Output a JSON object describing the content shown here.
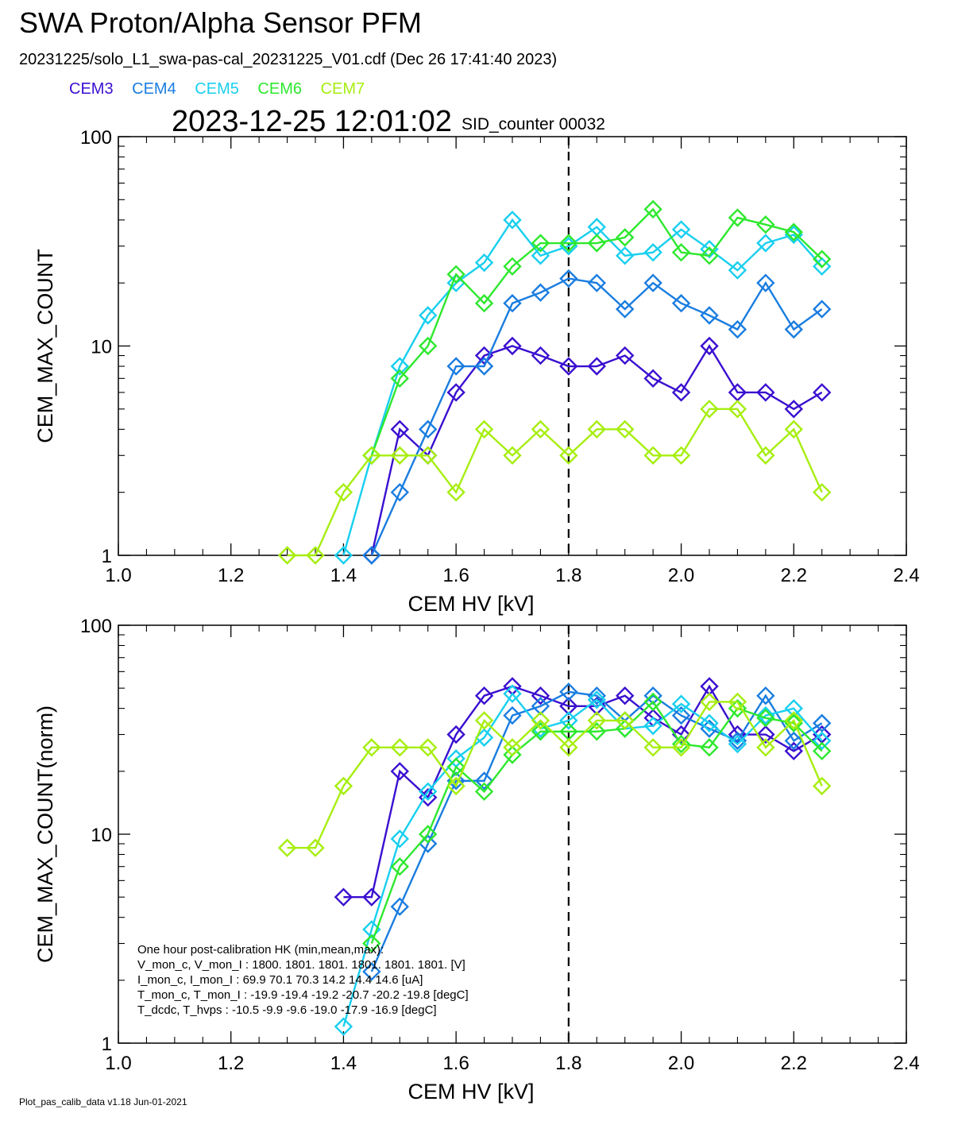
{
  "header": {
    "title": "SWA Proton/Alpha Sensor PFM",
    "subtitle": "20231225/solo_L1_swa-pas-cal_20231225_V01.cdf  (Dec 26 17:41:40 2023)",
    "timestamp": "2023-12-25 12:01:02",
    "sid_label": "SID_counter 00032"
  },
  "legend": [
    {
      "name": "CEM3",
      "color": "#3a0fd0"
    },
    {
      "name": "CEM4",
      "color": "#1a7de0"
    },
    {
      "name": "CEM5",
      "color": "#18cfef"
    },
    {
      "name": "CEM6",
      "color": "#2ee82e"
    },
    {
      "name": "CEM7",
      "color": "#a6ee10"
    }
  ],
  "footer": "Plot_pas_calib_data v1.18 Jun-01-2021",
  "hk_text": [
    "One hour post-calibration HK (min,mean,max):",
    "V_mon_c, V_mon_I :    1800.  1801.  1801.      1801.  1801.  1801.  [V]",
    "I_mon_c,  I_mon_I :      69.9   70.1   70.3        14.2   14.4   14.6  [uA]",
    "T_mon_c, T_mon_I :   -19.9  -19.4  -19.2       -20.7  -20.2  -19.8  [degC]",
    "T_dcdc,    T_hvps :     -10.5   -9.9   -9.6        -19.0  -17.9  -16.9  [degC]"
  ],
  "chart_data": [
    {
      "type": "line",
      "xlabel": "CEM HV [kV]",
      "ylabel": "CEM_MAX_COUNT",
      "xlim": [
        1.0,
        2.4
      ],
      "ylim": [
        1,
        100
      ],
      "yscale": "log",
      "xticks": [
        "1.0",
        "1.2",
        "1.4",
        "1.6",
        "1.8",
        "2.0",
        "2.2",
        "2.4"
      ],
      "yticks": [
        "1",
        "10",
        "100"
      ],
      "vline": 1.8,
      "x": [
        1.3,
        1.35,
        1.4,
        1.45,
        1.5,
        1.55,
        1.6,
        1.65,
        1.7,
        1.75,
        1.8,
        1.85,
        1.9,
        1.95,
        2.0,
        2.05,
        2.1,
        2.15,
        2.2,
        2.25
      ],
      "series": [
        {
          "name": "CEM3",
          "values": [
            null,
            null,
            null,
            1,
            4,
            3,
            6,
            9,
            10,
            9,
            8,
            8,
            9,
            7,
            6,
            10,
            6,
            6,
            5,
            6
          ]
        },
        {
          "name": "CEM4",
          "values": [
            null,
            null,
            null,
            1,
            2,
            4,
            8,
            8,
            16,
            18,
            21,
            20,
            15,
            20,
            16,
            14,
            12,
            20,
            12,
            15
          ]
        },
        {
          "name": "CEM5",
          "values": [
            null,
            null,
            1,
            3,
            8,
            14,
            20,
            25,
            40,
            27,
            30,
            37,
            27,
            28,
            36,
            29,
            23,
            31,
            34,
            24
          ]
        },
        {
          "name": "CEM6",
          "values": [
            null,
            null,
            null,
            3,
            7,
            10,
            22,
            16,
            24,
            31,
            31,
            31,
            33,
            45,
            28,
            27,
            41,
            38,
            35,
            26
          ]
        },
        {
          "name": "CEM7",
          "values": [
            1,
            1,
            2,
            3,
            3,
            3,
            2,
            4,
            3,
            4,
            3,
            4,
            4,
            3,
            3,
            5,
            5,
            3,
            4,
            2
          ]
        }
      ]
    },
    {
      "type": "line",
      "xlabel": "CEM HV [kV]",
      "ylabel": "CEM_MAX_COUNT(norm)",
      "xlim": [
        1.0,
        2.4
      ],
      "ylim": [
        1,
        100
      ],
      "yscale": "log",
      "xticks": [
        "1.0",
        "1.2",
        "1.4",
        "1.6",
        "1.8",
        "2.0",
        "2.2",
        "2.4"
      ],
      "yticks": [
        "1",
        "10",
        "100"
      ],
      "vline": 1.8,
      "x": [
        1.3,
        1.35,
        1.4,
        1.45,
        1.5,
        1.55,
        1.6,
        1.65,
        1.7,
        1.75,
        1.8,
        1.85,
        1.9,
        1.95,
        2.0,
        2.05,
        2.1,
        2.15,
        2.2,
        2.25
      ],
      "series": [
        {
          "name": "CEM3",
          "values": [
            null,
            null,
            5,
            5,
            20,
            15,
            30,
            46,
            51,
            46,
            41,
            41,
            46,
            36,
            30,
            51,
            30,
            30,
            25,
            30
          ]
        },
        {
          "name": "CEM4",
          "values": [
            null,
            null,
            null,
            2.2,
            4.5,
            9,
            18,
            18,
            37,
            41,
            48,
            46,
            35,
            46,
            37,
            32,
            28,
            46,
            28,
            34
          ]
        },
        {
          "name": "CEM5",
          "values": [
            null,
            null,
            1.2,
            3.5,
            9.5,
            16,
            23,
            29,
            47,
            32,
            35,
            44,
            32,
            33,
            42,
            34,
            27,
            37,
            40,
            28
          ]
        },
        {
          "name": "CEM6",
          "values": [
            null,
            null,
            null,
            3,
            7,
            10,
            21,
            16,
            24,
            31,
            31,
            31,
            32,
            43,
            27,
            26,
            40,
            36,
            34,
            25
          ]
        },
        {
          "name": "CEM7",
          "values": [
            8.6,
            8.6,
            17,
            26,
            26,
            26,
            17,
            35,
            26,
            35,
            26,
            35,
            35,
            26,
            26,
            43,
            43,
            26,
            35,
            17
          ]
        }
      ]
    }
  ]
}
